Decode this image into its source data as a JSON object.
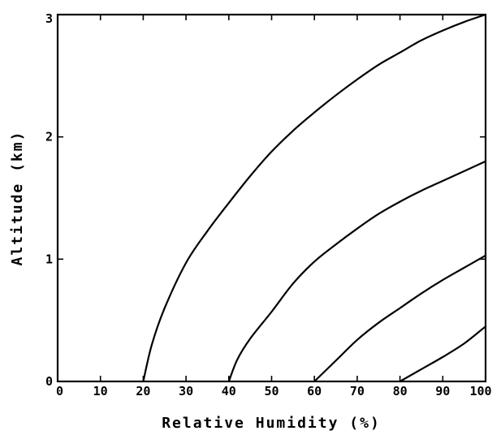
{
  "chart_data": {
    "type": "line",
    "title": "",
    "xlabel": "Relative Humidity (%)",
    "ylabel": "Altitude (km)",
    "xlim": [
      0,
      100
    ],
    "ylim": [
      0,
      3
    ],
    "x_ticks": [
      0,
      10,
      20,
      30,
      40,
      50,
      60,
      70,
      80,
      90,
      100
    ],
    "x_tick_labels": [
      "0",
      "10",
      "20",
      "30",
      "40",
      "50",
      "60",
      "70",
      "80",
      "90",
      "100"
    ],
    "y_ticks": [
      0,
      1,
      2,
      3
    ],
    "y_tick_labels": [
      "0",
      "1",
      "2",
      "3"
    ],
    "grid": false,
    "legend": "none",
    "line_color": "#000000",
    "series": [
      {
        "x": [
          20,
          22,
          25,
          30,
          35,
          40,
          45,
          50,
          55,
          60,
          65,
          70,
          75,
          80,
          85,
          90,
          95,
          100
        ],
        "y": [
          0,
          0.3,
          0.6,
          0.97,
          1.23,
          1.46,
          1.68,
          1.88,
          2.05,
          2.2,
          2.34,
          2.47,
          2.59,
          2.69,
          2.79,
          2.87,
          2.94,
          3.0
        ]
      },
      {
        "x": [
          40,
          42,
          45,
          50,
          55,
          60,
          65,
          70,
          75,
          80,
          85,
          90,
          95,
          100
        ],
        "y": [
          0,
          0.18,
          0.35,
          0.57,
          0.8,
          0.98,
          1.12,
          1.25,
          1.37,
          1.47,
          1.56,
          1.64,
          1.72,
          1.8
        ]
      },
      {
        "x": [
          60,
          65,
          70,
          75,
          80,
          85,
          90,
          95,
          100
        ],
        "y": [
          0,
          0.17,
          0.34,
          0.48,
          0.6,
          0.72,
          0.83,
          0.93,
          1.03
        ]
      },
      {
        "x": [
          80,
          85,
          90,
          95,
          100
        ],
        "y": [
          0,
          0.1,
          0.2,
          0.31,
          0.45
        ]
      }
    ]
  }
}
